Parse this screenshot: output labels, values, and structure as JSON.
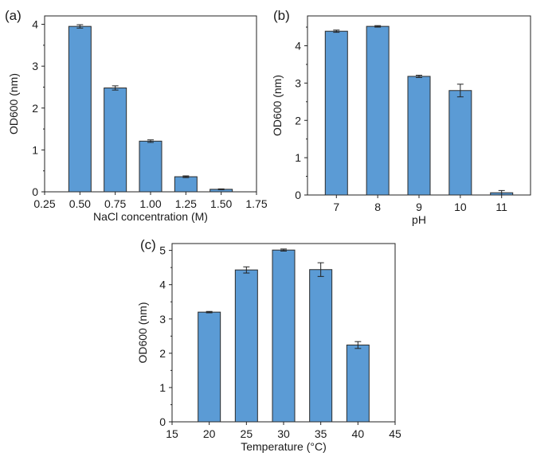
{
  "chart_data": [
    {
      "panel_label": "(a)",
      "type": "bar",
      "xlabel": "NaCl concentration (M)",
      "ylabel": "OD600 (nm)",
      "xlim": [
        0.25,
        1.75
      ],
      "ylim": [
        0,
        4.2
      ],
      "xticks": [
        "0.25",
        "0.50",
        "0.75",
        "1.00",
        "1.25",
        "1.50",
        "1.75"
      ],
      "yticks": [
        "0",
        "1",
        "2",
        "3",
        "4"
      ],
      "categories": [
        0.5,
        0.75,
        1.0,
        1.25,
        1.5
      ],
      "values": [
        3.95,
        2.48,
        1.21,
        0.36,
        0.06
      ],
      "errors": [
        0.04,
        0.05,
        0.03,
        0.02,
        0.01
      ],
      "bar_color": "#5b9bd5"
    },
    {
      "panel_label": "(b)",
      "type": "bar",
      "xlabel": "pH",
      "ylabel": "OD600 (nm)",
      "xlim": [
        6.3,
        11.7
      ],
      "ylim": [
        0,
        4.8
      ],
      "xticks": [
        "7",
        "8",
        "9",
        "10",
        "11"
      ],
      "yticks": [
        "0",
        "1",
        "2",
        "3",
        "4"
      ],
      "categories": [
        7,
        8,
        9,
        10,
        11
      ],
      "values": [
        4.39,
        4.52,
        3.18,
        2.8,
        0.06
      ],
      "errors": [
        0.03,
        0.02,
        0.03,
        0.17,
        0.06
      ],
      "bar_color": "#5b9bd5"
    },
    {
      "panel_label": "(c)",
      "type": "bar",
      "xlabel": "Temperature (°C)",
      "ylabel": "OD600 (nm)",
      "xlim": [
        15,
        45
      ],
      "ylim": [
        0,
        5.2
      ],
      "xticks": [
        "15",
        "20",
        "25",
        "30",
        "35",
        "40",
        "45"
      ],
      "yticks": [
        "0",
        "1",
        "2",
        "3",
        "4",
        "5"
      ],
      "categories": [
        20,
        25,
        30,
        35,
        40
      ],
      "values": [
        3.2,
        4.43,
        5.01,
        4.44,
        2.24
      ],
      "errors": [
        0.02,
        0.09,
        0.03,
        0.2,
        0.1
      ],
      "bar_color": "#5b9bd5"
    }
  ]
}
